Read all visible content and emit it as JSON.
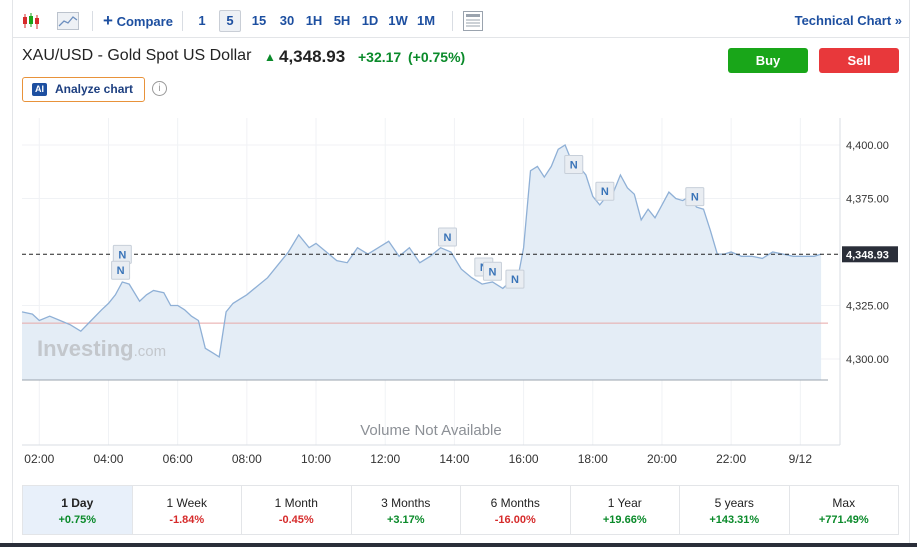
{
  "toolbar": {
    "compare_label": "Compare",
    "intervals": [
      "1",
      "5",
      "15",
      "30",
      "1H",
      "5H",
      "1D",
      "1W",
      "1M"
    ],
    "active_interval": "5",
    "technical_label": "Technical Chart »"
  },
  "header": {
    "title": "XAU/USD - Gold Spot US Dollar",
    "price": "4,348.93",
    "change": "+32.17",
    "change_pct": "(+0.75%)",
    "buy_label": "Buy",
    "sell_label": "Sell",
    "analyze_label": "Analyze chart",
    "ai_badge": "AI"
  },
  "colors": {
    "up": "#0a8a2a",
    "down": "#d62b2b",
    "buy": "#19a619",
    "sell": "#e8383b",
    "line": "#8fb0d6",
    "area": "#e4edf6"
  },
  "chart_data": {
    "type": "area",
    "watermark_main": "Investing",
    "watermark_suffix": ".com",
    "volume_text": "Volume Not Available",
    "last_price_label": "4,348.93",
    "last_price": 4348.93,
    "prev_close": 4316.76,
    "ylim": [
      4290,
      4410
    ],
    "y_ticks": [
      4300,
      4325,
      4375,
      4400
    ],
    "y_tick_labels": [
      "4,300.00",
      "4,325.00",
      "4,375.00",
      "4,400.00"
    ],
    "x_tick_labels": [
      "02:00",
      "04:00",
      "06:00",
      "08:00",
      "10:00",
      "12:00",
      "14:00",
      "16:00",
      "18:00",
      "20:00",
      "22:00",
      "9/12"
    ],
    "x_range_hours": [
      1.5,
      24.8
    ],
    "series": [
      {
        "x": [
          1.5,
          1.8,
          2.0,
          2.3,
          2.6,
          2.9,
          3.2,
          3.5,
          3.8,
          4.0,
          4.2,
          4.4,
          4.6,
          4.9,
          5.1,
          5.3,
          5.6,
          5.8,
          6.0,
          6.2,
          6.4,
          6.6,
          6.8,
          7.0,
          7.2,
          7.4,
          7.6,
          7.8,
          8.0,
          8.3,
          8.6,
          8.9,
          9.2,
          9.5,
          9.8,
          10.0,
          10.3,
          10.6,
          10.9,
          11.2,
          11.5,
          11.8,
          12.1,
          12.4,
          12.7,
          13.0,
          13.3,
          13.6,
          13.9,
          14.2,
          14.5,
          14.8,
          15.1,
          15.4,
          15.6,
          15.8,
          16.0,
          16.2,
          16.4,
          16.6,
          16.8,
          17.0,
          17.2,
          17.4,
          17.6,
          17.8,
          18.0,
          18.2,
          18.4,
          18.6,
          18.8,
          19.0,
          19.2,
          19.4,
          19.6,
          19.8,
          20.0,
          20.2,
          20.4,
          20.6,
          20.8,
          21.0,
          21.2,
          21.4,
          21.6,
          21.8,
          22.0,
          22.3,
          22.6,
          22.9,
          23.2,
          23.5,
          23.8,
          24.1,
          24.4,
          24.6
        ],
        "y": [
          4322,
          4321,
          4318,
          4320,
          4318,
          4316,
          4313,
          4318,
          4323,
          4326,
          4330,
          4336,
          4335,
          4327,
          4330,
          4332,
          4331,
          4325,
          4325,
          4323,
          4320,
          4318,
          4305,
          4303,
          4301,
          4322,
          4326,
          4328,
          4330,
          4334,
          4338,
          4344,
          4350,
          4358,
          4352,
          4354,
          4350,
          4346,
          4345,
          4352,
          4349,
          4352,
          4355,
          4348,
          4352,
          4345,
          4348,
          4352,
          4350,
          4342,
          4338,
          4335,
          4336,
          4333,
          4336,
          4335,
          4352,
          4388,
          4390,
          4385,
          4390,
          4398,
          4400,
          4392,
          4390,
          4386,
          4376,
          4372,
          4376,
          4378,
          4386,
          4380,
          4377,
          4365,
          4370,
          4366,
          4372,
          4378,
          4375,
          4374,
          4376,
          4371,
          4370,
          4360,
          4349,
          4349,
          4350,
          4348,
          4348,
          4347,
          4350,
          4349,
          4348,
          4348,
          4348,
          4349
        ]
      }
    ],
    "news_markers": [
      {
        "label": "N",
        "x": 4.4,
        "y": 4348.9
      },
      {
        "label": "N",
        "x": 4.35,
        "y": 4341.5
      },
      {
        "label": "N",
        "x": 13.8,
        "y": 4357.0
      },
      {
        "label": "N",
        "x": 14.85,
        "y": 4343.0
      },
      {
        "label": "N",
        "x": 15.1,
        "y": 4341.0
      },
      {
        "label": "N",
        "x": 15.75,
        "y": 4337.3
      },
      {
        "label": "N",
        "x": 17.45,
        "y": 4390.9
      },
      {
        "label": "N",
        "x": 18.35,
        "y": 4378.4
      },
      {
        "label": "N",
        "x": 20.95,
        "y": 4375.9
      }
    ]
  },
  "periods": [
    {
      "label": "1 Day",
      "value": "+0.75%",
      "dir": "up"
    },
    {
      "label": "1 Week",
      "value": "-1.84%",
      "dir": "down"
    },
    {
      "label": "1 Month",
      "value": "-0.45%",
      "dir": "down"
    },
    {
      "label": "3 Months",
      "value": "+3.17%",
      "dir": "up"
    },
    {
      "label": "6 Months",
      "value": "-16.00%",
      "dir": "down"
    },
    {
      "label": "1 Year",
      "value": "+19.66%",
      "dir": "up"
    },
    {
      "label": "5 years",
      "value": "+143.31%",
      "dir": "up"
    },
    {
      "label": "Max",
      "value": "+771.49%",
      "dir": "up"
    }
  ]
}
